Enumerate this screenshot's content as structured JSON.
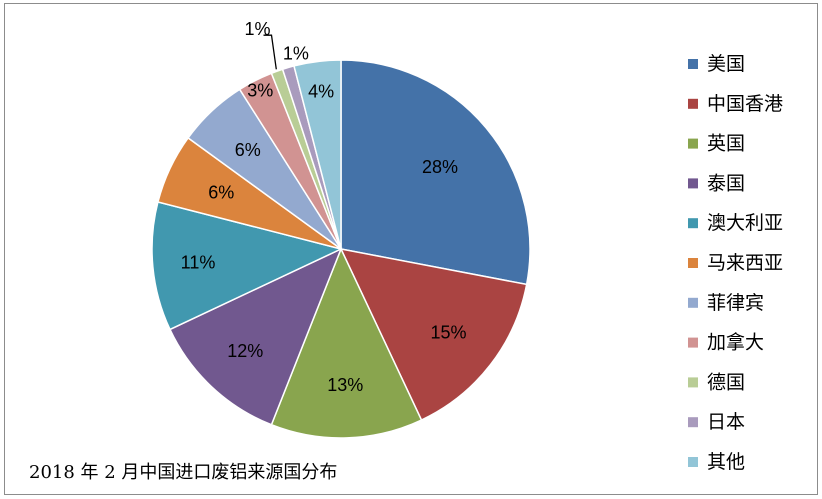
{
  "chart_data": {
    "type": "pie",
    "title": "2018 年 2 月中国进口废铝来源国分布",
    "unit": "%",
    "slices": [
      {
        "label": "美国",
        "value": 28,
        "display": "28%",
        "color": "#4472A8"
      },
      {
        "label": "中国香港",
        "value": 15,
        "display": "15%",
        "color": "#AA4442"
      },
      {
        "label": "英国",
        "value": 13,
        "display": "13%",
        "color": "#89A54E"
      },
      {
        "label": "泰国",
        "value": 12,
        "display": "12%",
        "color": "#71588F"
      },
      {
        "label": "澳大利亚",
        "value": 11,
        "display": "11%",
        "color": "#4198AF"
      },
      {
        "label": "马来西亚",
        "value": 6,
        "display": "6%",
        "color": "#DB843D"
      },
      {
        "label": "菲律宾",
        "value": 6,
        "display": "6%",
        "color": "#93A9CF"
      },
      {
        "label": "加拿大",
        "value": 3,
        "display": "3%",
        "color": "#D19392"
      },
      {
        "label": "德国",
        "value": 1,
        "display": "1%",
        "color": "#B9CD96"
      },
      {
        "label": "日本",
        "value": 1,
        "display": "1%",
        "color": "#A99BBD"
      },
      {
        "label": "其他",
        "value": 4,
        "display": "4%",
        "color": "#92C5D7"
      }
    ],
    "legend_position": "right",
    "start_angle": "12 o'clock",
    "direction": "clockwise"
  }
}
